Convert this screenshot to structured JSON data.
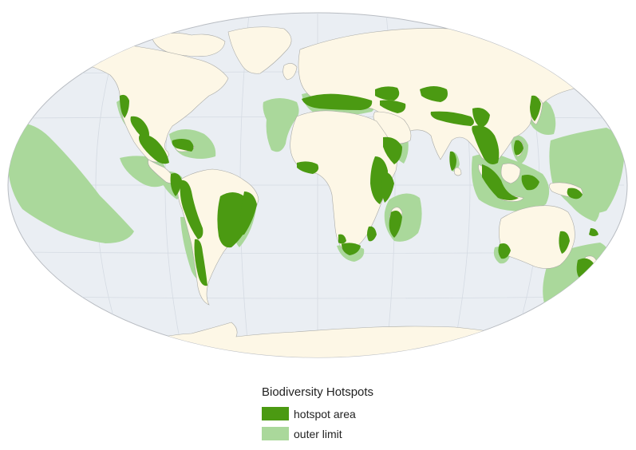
{
  "colors": {
    "ocean": "#eaeef3",
    "land": "#fdf7e6",
    "land_stroke": "#a9aaa6",
    "graticule": "#d5dbe3",
    "hotspot_area": "#4b9a12",
    "outer_limit": "#aad89b",
    "text": "#222222"
  },
  "legend": {
    "title": "Biodiversity Hotspots",
    "items": [
      {
        "label": "hotspot area",
        "color": "#4b9a12"
      },
      {
        "label": "outer limit",
        "color": "#aad89b"
      }
    ]
  }
}
